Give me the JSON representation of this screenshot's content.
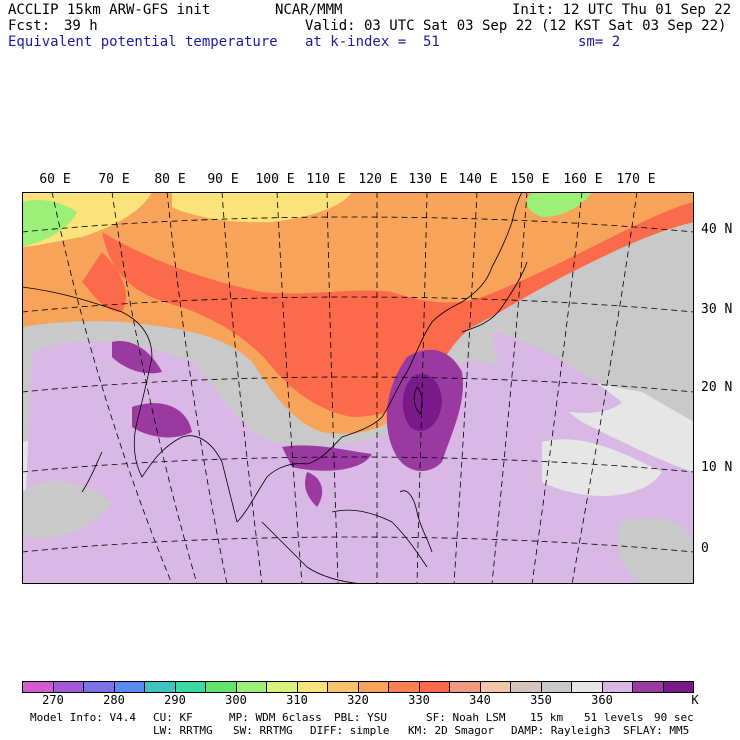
{
  "header": {
    "model_title": "ACCLIP 15km ARW-GFS init",
    "center": "NCAR/MMM",
    "init": "Init: 12 UTC Thu 01 Sep 22",
    "fcst_label": "Fcst:",
    "fcst_value": "39 h",
    "valid": "Valid: 03 UTC Sat 03 Sep 22 (12 KST Sat 03 Sep 22)",
    "field": "Equivalent potential temperature",
    "level": "at k-index =  51",
    "smoothing": "sm= 2"
  },
  "map": {
    "lon_labels": [
      "60 E",
      "70 E",
      "80 E",
      "90 E",
      "100 E",
      "110 E",
      "120 E",
      "130 E",
      "140 E",
      "150 E",
      "160 E",
      "170 E"
    ],
    "lat_labels": [
      "40 N",
      "30 N",
      "20 N",
      "10 N",
      "0"
    ],
    "colors": {
      "ocean": "#c9c9c9",
      "ocean_light": "#e6e6e6",
      "cold_green": "#9cf078",
      "yellow": "#fae37a",
      "orange": "#f8a35a",
      "red": "#fb6a4a",
      "lavender": "#d9b8e6",
      "purple": "#9a3aa0",
      "deep_purple": "#7a1a8a"
    }
  },
  "colorbar": {
    "colors": [
      "#d25bd2",
      "#a35ad9",
      "#7a72e6",
      "#5a8bf0",
      "#3fc4c4",
      "#3cd9a0",
      "#62e46a",
      "#9cf078",
      "#d8f27a",
      "#fae37a",
      "#f8c36a",
      "#f8a35a",
      "#fb8050",
      "#fb6a4a",
      "#f09a80",
      "#f2c4a8",
      "#d4c4bc",
      "#c9c9c9",
      "#e6e6e6",
      "#d9b8e6",
      "#9a3aa0",
      "#7a1a8a"
    ],
    "ticks": [
      "270",
      "280",
      "290",
      "300",
      "310",
      "320",
      "330",
      "340",
      "350",
      "360"
    ],
    "unit": "K"
  },
  "footer": {
    "line1": [
      "Model Info: V4.4",
      "CU: KF",
      "MP: WDM 6class",
      "PBL: YSU",
      "SF: Noah LSM",
      "15 km",
      "51 levels",
      "90 sec"
    ],
    "line2": [
      "LW: RRTMG",
      "SW: RRTMG",
      "DIFF: simple",
      "KM: 2D Smagor",
      "DAMP: Rayleigh3",
      "SFLAY: MM5"
    ]
  }
}
